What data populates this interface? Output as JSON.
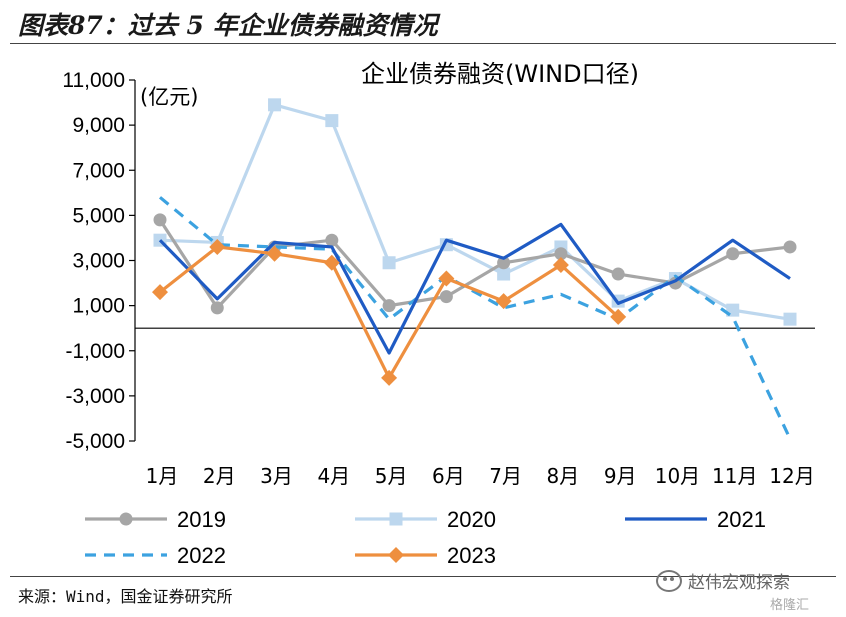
{
  "figure_title": "图表87：过去 5 年企业债券融资情况",
  "source": "来源：Wind，国金证券研究所",
  "watermark": "赵伟宏观探索",
  "watermark2": "格隆汇",
  "chart_data": {
    "type": "line",
    "title": "企业债券融资(WIND口径)",
    "unit_label": "(亿元)",
    "categories": [
      "1月",
      "2月",
      "3月",
      "4月",
      "5月",
      "6月",
      "7月",
      "8月",
      "9月",
      "10月",
      "11月",
      "12月"
    ],
    "ylim": [
      -5000,
      11000
    ],
    "yticks": [
      11000,
      9000,
      7000,
      5000,
      3000,
      1000,
      -1000,
      -3000,
      -5000
    ],
    "ytick_labels": [
      "11,000",
      "9,000",
      "7,000",
      "5,000",
      "3,000",
      "1,000",
      "-1,000",
      "-3,000",
      "-5,000"
    ],
    "grid": false,
    "legend_position": "bottom",
    "series": [
      {
        "name": "2019",
        "color": "#a6a6a6",
        "dash": "solid",
        "marker": "circle",
        "values": [
          4800,
          900,
          3600,
          3900,
          1000,
          1400,
          2900,
          3300,
          2400,
          2000,
          3300,
          3600
        ]
      },
      {
        "name": "2020",
        "color": "#bdd7ee",
        "dash": "solid",
        "marker": "square",
        "values": [
          3900,
          3800,
          9900,
          9200,
          2900,
          3700,
          2400,
          3600,
          1200,
          2200,
          800,
          400
        ]
      },
      {
        "name": "2021",
        "color": "#1f5bc4",
        "dash": "solid",
        "marker": "none",
        "values": [
          3900,
          1300,
          3800,
          3600,
          -1100,
          3900,
          3100,
          4600,
          1100,
          2100,
          3900,
          2200
        ]
      },
      {
        "name": "2022",
        "color": "#3ca2e0",
        "dash": "dashed",
        "marker": "none",
        "values": [
          5800,
          3700,
          3600,
          3500,
          400,
          2300,
          900,
          1500,
          400,
          2300,
          500,
          -4900
        ]
      },
      {
        "name": "2023",
        "color": "#ee8f3f",
        "dash": "solid",
        "marker": "diamond",
        "values": [
          1600,
          3600,
          3300,
          2900,
          -2200,
          2200,
          1200,
          2800,
          500,
          null,
          null,
          null
        ]
      }
    ]
  }
}
